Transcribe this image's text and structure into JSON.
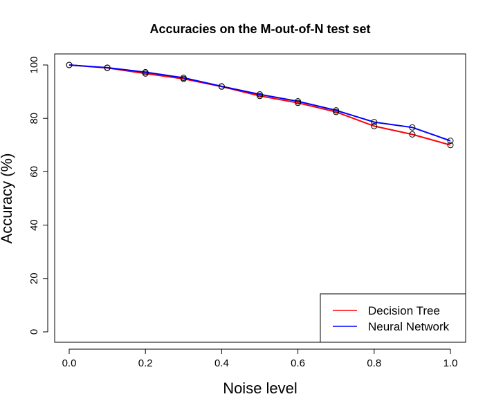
{
  "chart_data": {
    "type": "line",
    "title": "Accuracies on the M-out-of-N test set",
    "xlabel": "Noise level",
    "ylabel": "Accuracy (%)",
    "xlim": [
      0.0,
      1.0
    ],
    "ylim": [
      0,
      100
    ],
    "x_ticks": [
      "0.0",
      "0.2",
      "0.4",
      "0.6",
      "0.8",
      "1.0"
    ],
    "y_ticks": [
      "0",
      "20",
      "40",
      "60",
      "80",
      "100"
    ],
    "x": [
      0.0,
      0.1,
      0.2,
      0.3,
      0.4,
      0.5,
      0.6,
      0.7,
      0.8,
      0.9,
      1.0
    ],
    "series": [
      {
        "name": "Decision Tree",
        "color": "#ff0000",
        "values": [
          100,
          98.9,
          96.8,
          94.8,
          91.9,
          88.4,
          85.8,
          82.4,
          77.1,
          74.0,
          70.0
        ]
      },
      {
        "name": "Neural Network",
        "color": "#0000ff",
        "values": [
          100,
          99.0,
          97.3,
          95.2,
          92.0,
          89.0,
          86.4,
          83.0,
          78.6,
          76.6,
          71.6
        ]
      }
    ],
    "markers": "open-circle",
    "grid": false,
    "legend_position": "bottom-right"
  }
}
